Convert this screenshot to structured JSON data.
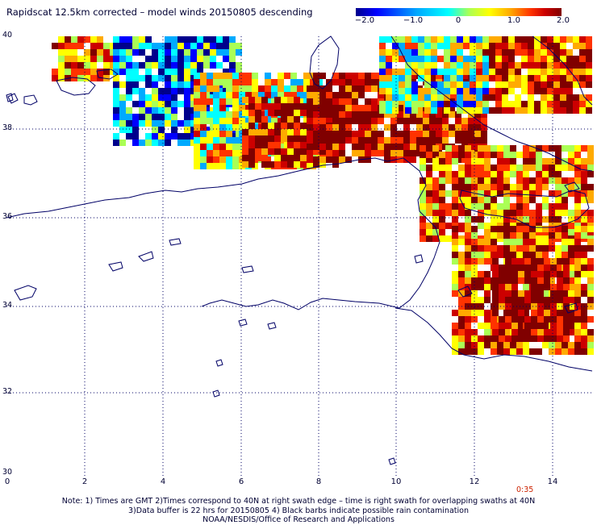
{
  "title": "Rapidscat 12.5km corrected – model winds 20150805 descending",
  "colorbar": {
    "labels": [
      "−2.0",
      "−1.0",
      "0",
      "1.0",
      "2.0"
    ],
    "colors": [
      "#00008c",
      "#0000ff",
      "#00aaff",
      "#00ffff",
      "#aaff55",
      "#ffff00",
      "#ffaa00",
      "#ff3300",
      "#cc0000",
      "#800000"
    ]
  },
  "y_axis": {
    "labels": [
      "40",
      "38",
      "36",
      "34",
      "32",
      "30"
    ]
  },
  "x_axis": {
    "labels": [
      "0",
      "2",
      "4",
      "6",
      "8",
      "10",
      "12",
      "14"
    ]
  },
  "timestamp": "0:35",
  "notes": [
    "Note: 1) Times are GMT 2)Times correspond to 40N at right swath edge – time is right swath for overlapping swaths at 40N",
    "3)Data buffer is 22 hrs for 20150805 4) Black barbs indicate possible rain contamination",
    "NOAA/NESDIS/Office of Research and Applications"
  ],
  "colors": {
    "coast": "#000066",
    "grid": "#000066",
    "text": "#000033"
  }
}
